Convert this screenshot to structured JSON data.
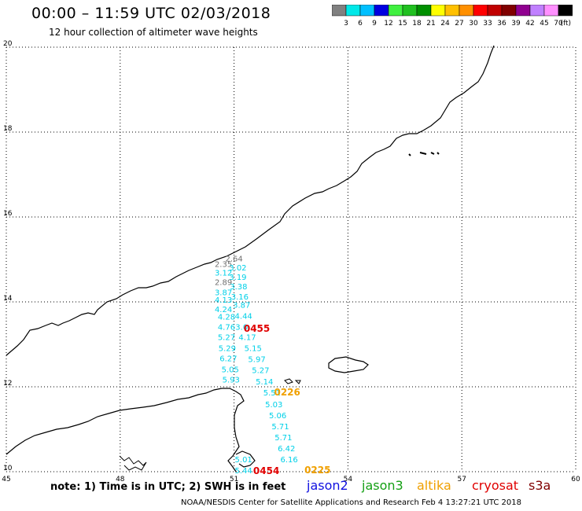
{
  "header": {
    "title": "00:00 – 11:59 UTC 02/03/2018",
    "subtitle": "12 hour collection of altimeter wave heights"
  },
  "legend": {
    "colors": [
      "#808080",
      "#00e8e8",
      "#00c0ff",
      "#0000e0",
      "#40f040",
      "#20c020",
      "#009000",
      "#ffff00",
      "#ffc000",
      "#ff9000",
      "#ff0000",
      "#c00000",
      "#800000",
      "#900090",
      "#c080ff",
      "#ff90ff",
      "#000000"
    ],
    "labels": [
      "3",
      "6",
      "9",
      "12",
      "15",
      "18",
      "21",
      "24",
      "27",
      "30",
      "33",
      "36",
      "39",
      "42",
      "45",
      "70"
    ],
    "unit": "(ft)"
  },
  "map": {
    "lon_labels": [
      "45",
      "48",
      "51",
      "54",
      "57",
      "60"
    ],
    "lat_labels": [
      "10",
      "12",
      "14",
      "16",
      "18",
      "20"
    ],
    "wave_heights": [
      {
        "text": "2.64",
        "lon": 51.0,
        "lat": 14.95,
        "color": "#707070"
      },
      {
        "text": "2.35",
        "lon": 50.72,
        "lat": 14.82,
        "color": "#707070"
      },
      {
        "text": "3.02",
        "lon": 51.1,
        "lat": 14.74,
        "color": "#00d0e8"
      },
      {
        "text": "3.12",
        "lon": 50.72,
        "lat": 14.62,
        "color": "#00d0e8"
      },
      {
        "text": "3.19",
        "lon": 51.1,
        "lat": 14.52,
        "color": "#00d0e8"
      },
      {
        "text": "2.89",
        "lon": 50.72,
        "lat": 14.4,
        "color": "#707070"
      },
      {
        "text": "3.38",
        "lon": 51.12,
        "lat": 14.3,
        "color": "#00d0e8"
      },
      {
        "text": "3.87",
        "lon": 50.72,
        "lat": 14.16,
        "color": "#00d0e8"
      },
      {
        "text": "3.16",
        "lon": 51.15,
        "lat": 14.06,
        "color": "#00d0e8"
      },
      {
        "text": "4.13",
        "lon": 50.72,
        "lat": 13.98,
        "color": "#00d0e8"
      },
      {
        "text": "3.87",
        "lon": 51.2,
        "lat": 13.86,
        "color": "#00d0e8"
      },
      {
        "text": "4.24",
        "lon": 50.72,
        "lat": 13.76,
        "color": "#00d0e8"
      },
      {
        "text": "4.28",
        "lon": 50.8,
        "lat": 13.58,
        "color": "#00d0e8"
      },
      {
        "text": "4.44",
        "lon": 51.25,
        "lat": 13.6,
        "color": "#00d0e8"
      },
      {
        "text": "4.76",
        "lon": 50.8,
        "lat": 13.34,
        "color": "#00d0e8"
      },
      {
        "text": "3.0",
        "lon": 51.2,
        "lat": 13.34,
        "color": "#00d0e8"
      },
      {
        "text": "5.27",
        "lon": 50.8,
        "lat": 13.1,
        "color": "#00d0e8"
      },
      {
        "text": "4.17",
        "lon": 51.35,
        "lat": 13.1,
        "color": "#00d0e8"
      },
      {
        "text": "5.29",
        "lon": 50.82,
        "lat": 12.84,
        "color": "#00d0e8"
      },
      {
        "text": "5.15",
        "lon": 51.5,
        "lat": 12.84,
        "color": "#00d0e8"
      },
      {
        "text": "6.27",
        "lon": 50.85,
        "lat": 12.6,
        "color": "#00d0e8"
      },
      {
        "text": "5.97",
        "lon": 51.6,
        "lat": 12.58,
        "color": "#00d0e8"
      },
      {
        "text": "5.05",
        "lon": 50.9,
        "lat": 12.34,
        "color": "#00d0e8"
      },
      {
        "text": "5.27",
        "lon": 51.7,
        "lat": 12.32,
        "color": "#00d0e8"
      },
      {
        "text": "5.93",
        "lon": 50.92,
        "lat": 12.1,
        "color": "#00d0e8"
      },
      {
        "text": "5.14",
        "lon": 51.8,
        "lat": 12.06,
        "color": "#00d0e8"
      },
      {
        "text": "5.51",
        "lon": 52.0,
        "lat": 11.8,
        "color": "#00d0e8"
      },
      {
        "text": "5.03",
        "lon": 52.05,
        "lat": 11.52,
        "color": "#00d0e8"
      },
      {
        "text": "5.06",
        "lon": 52.15,
        "lat": 11.26,
        "color": "#00d0e8"
      },
      {
        "text": "5.71",
        "lon": 52.22,
        "lat": 11.0,
        "color": "#00d0e8"
      },
      {
        "text": "5.71",
        "lon": 52.3,
        "lat": 10.74,
        "color": "#00d0e8"
      },
      {
        "text": "6.42",
        "lon": 52.38,
        "lat": 10.48,
        "color": "#00d0e8"
      },
      {
        "text": "6.16",
        "lon": 52.45,
        "lat": 10.22,
        "color": "#00d0e8"
      },
      {
        "text": "5.01",
        "lon": 51.25,
        "lat": 10.22,
        "color": "#00d0e8"
      },
      {
        "text": "5.44",
        "lon": 51.25,
        "lat": 9.96,
        "color": "#00d0e8"
      }
    ],
    "pass_times": [
      {
        "text": "0455",
        "lon": 51.6,
        "lat": 13.3,
        "color": "#e00000"
      },
      {
        "text": "0226",
        "lon": 52.4,
        "lat": 11.8,
        "color": "#f0a000"
      },
      {
        "text": "0454",
        "lon": 51.85,
        "lat": 9.94,
        "color": "#e00000"
      },
      {
        "text": "0225",
        "lon": 53.2,
        "lat": 9.96,
        "color": "#f0a000"
      }
    ]
  },
  "footer": {
    "note": "note: 1) Time is in UTC; 2) SWH is in feet",
    "satellites": [
      "jason2",
      "jason3",
      "altika",
      "cryosat",
      "s3a"
    ],
    "credit": "NOAA/NESDIS Center for Satellite Applications and Research    Feb  4 13:27:21 UTC 2018"
  }
}
